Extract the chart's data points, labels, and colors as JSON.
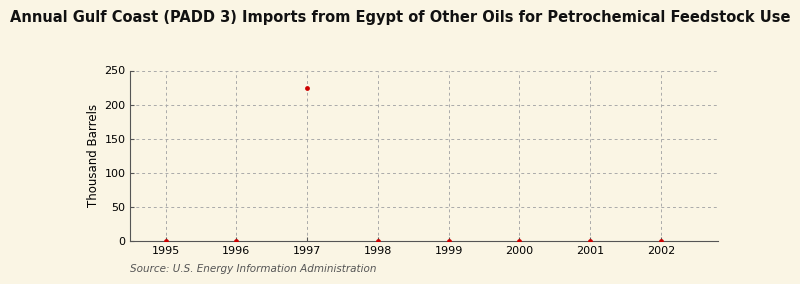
{
  "title": "Annual Gulf Coast (PADD 3) Imports from Egypt of Other Oils for Petrochemical Feedstock Use",
  "ylabel": "Thousand Barrels",
  "xlabel": "",
  "years": [
    1995,
    1996,
    1997,
    1998,
    1999,
    2000,
    2001,
    2002
  ],
  "values": [
    0,
    0,
    225,
    0,
    0,
    0,
    0,
    0
  ],
  "xlim": [
    1994.5,
    2002.8
  ],
  "ylim": [
    0,
    250
  ],
  "yticks": [
    0,
    50,
    100,
    150,
    200,
    250
  ],
  "xticks": [
    1995,
    1996,
    1997,
    1998,
    1999,
    2000,
    2001,
    2002
  ],
  "marker_color": "#cc0000",
  "marker_size": 12,
  "grid_color": "#aaaaaa",
  "bg_color": "#faf5e4",
  "figure_bg": "#faf5e4",
  "spine_color": "#555555",
  "source_text": "Source: U.S. Energy Information Administration",
  "title_fontsize": 10.5,
  "axis_fontsize": 8.5,
  "tick_fontsize": 8,
  "source_fontsize": 7.5
}
